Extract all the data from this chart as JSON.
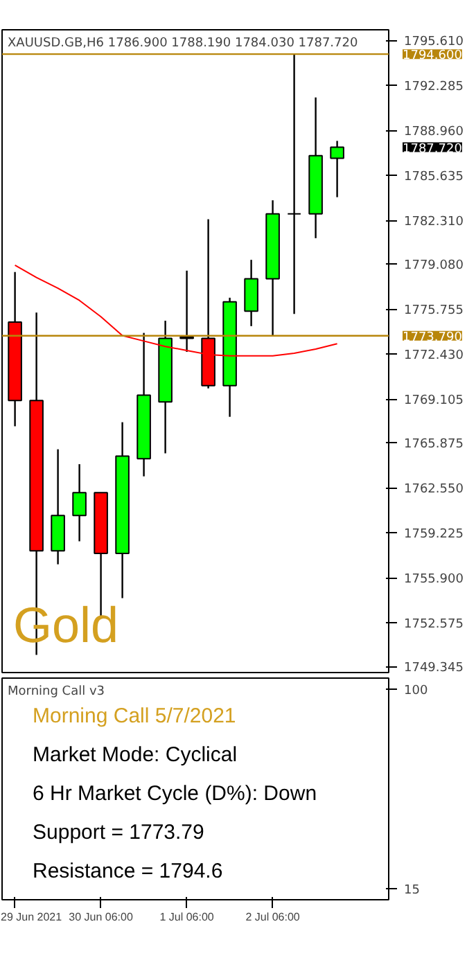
{
  "chart_data": [
    {
      "type": "candlestick",
      "title": "XAUUSD.GB,H6  1786.900  1788.190  1784.030  1787.720",
      "categories": [
        null,
        null,
        null,
        null,
        null,
        null,
        null,
        null,
        null,
        null,
        null,
        null,
        null,
        null,
        null,
        null
      ],
      "ohlc": [
        [
          1774.8,
          1778.5,
          1767.1,
          1769.0
        ],
        [
          1769.0,
          1775.5,
          1750.2,
          1757.9
        ],
        [
          1757.9,
          1765.4,
          1756.9,
          1760.5
        ],
        [
          1760.5,
          1764.3,
          1758.6,
          1762.2
        ],
        [
          1762.2,
          1762.2,
          1752.9,
          1757.7
        ],
        [
          1757.7,
          1767.4,
          1754.4,
          1764.9
        ],
        [
          1764.7,
          1774.0,
          1763.4,
          1769.4
        ],
        [
          1768.9,
          1774.9,
          1765.1,
          1773.6
        ],
        [
          1773.6,
          1778.6,
          1772.6,
          1773.7
        ],
        [
          1773.6,
          1782.4,
          1769.9,
          1770.1
        ],
        [
          1770.1,
          1776.6,
          1767.8,
          1776.3
        ],
        [
          1775.6,
          1779.4,
          1774.5,
          1778.0
        ],
        [
          1778.0,
          1783.8,
          1773.8,
          1782.8
        ],
        [
          1782.8,
          1794.6,
          1775.4,
          1782.8
        ],
        [
          1782.8,
          1791.4,
          1781.0,
          1787.1
        ],
        [
          1786.9,
          1788.19,
          1784.03,
          1787.72
        ]
      ],
      "colors": [
        "#ff0000",
        "#ff0000",
        "#00ff00",
        "#00ff00",
        "#ff0000",
        "#00ff00",
        "#00ff00",
        "#00ff00",
        "#00ff00",
        "#ff0000",
        "#00ff00",
        "#00ff00",
        "#00ff00",
        "#000000",
        "#00ff00",
        "#00ff00"
      ],
      "series": [
        {
          "type": "line",
          "color": "#ff0000",
          "values": [
            1779.0,
            1778.1,
            1777.3,
            1776.4,
            1775.2,
            1773.8,
            1773.4,
            1773.0,
            1772.7,
            1772.4,
            1772.3,
            1772.3,
            1772.3,
            1772.5,
            1772.8,
            1773.2
          ]
        }
      ],
      "ylim": [
        1748.9,
        1796.4
      ],
      "yticks": [
        {
          "value": 1749.345,
          "label": "1749.345"
        },
        {
          "value": 1752.575,
          "label": "1752.575"
        },
        {
          "value": 1755.9,
          "label": "1755.900"
        },
        {
          "value": 1759.225,
          "label": "1759.225"
        },
        {
          "value": 1762.55,
          "label": "1762.550"
        },
        {
          "value": 1765.875,
          "label": "1765.875"
        },
        {
          "value": 1769.105,
          "label": "1769.105"
        },
        {
          "value": 1772.43,
          "label": "1772.430"
        },
        {
          "value": 1775.755,
          "label": "1775.755"
        },
        {
          "value": 1779.08,
          "label": "1779.080"
        },
        {
          "value": 1782.31,
          "label": "1782.310"
        },
        {
          "value": 1785.635,
          "label": "1785.635"
        },
        {
          "value": 1788.96,
          "label": "1788.960"
        },
        {
          "value": 1792.285,
          "label": "1792.285"
        },
        {
          "value": 1795.61,
          "label": "1795.610"
        }
      ],
      "ref_lines": [
        {
          "axis": "y",
          "value": 1794.6,
          "label": "1794.600",
          "color": "#b8860b"
        },
        {
          "axis": "y",
          "value": 1773.79,
          "label": "1773.790",
          "color": "#b8860b"
        }
      ],
      "annotations": [
        "1787.720",
        "Gold"
      ],
      "tick_labels": "y",
      "grid": false
    },
    {
      "type": "other",
      "title": "Morning Call v3",
      "categories": [
        "29 Jun 2021",
        null,
        null,
        null,
        "30 Jun 06:00",
        null,
        null,
        null,
        "1 Jul 06:00",
        null,
        null,
        null,
        "2 Jul 06:00",
        null,
        null,
        null
      ],
      "annotations": [
        "Morning Call 5/7/2021",
        "Market Mode: Cyclical",
        "6 Hr Market Cycle (D%): Down",
        "Support = 1773.79",
        "Resistance = 1794.6",
        "100",
        "15"
      ]
    }
  ]
}
